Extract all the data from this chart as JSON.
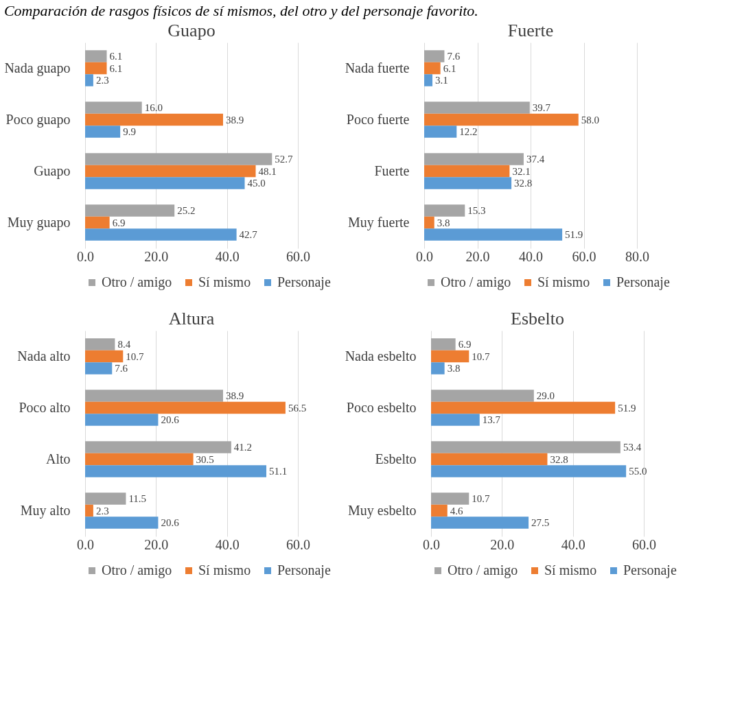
{
  "chart_data": [
    {
      "type": "bar",
      "orientation": "horizontal",
      "title": "Guapo",
      "annotations": [
        "Comparación de rasgos físicos de sí mismos, del otro y del personaje favorito."
      ],
      "categories": [
        "Nada guapo",
        "Poco guapo",
        "Guapo",
        "Muy guapo"
      ],
      "series": [
        {
          "name": "Otro / amigo",
          "color": "#a5a5a5",
          "values": [
            6.1,
            16.0,
            52.7,
            25.2
          ],
          "value_labels": [
            "6.1",
            "16.0",
            "52.7",
            "25.2"
          ]
        },
        {
          "name": "Sí mismo",
          "color": "#ed7d31",
          "values": [
            6.1,
            38.9,
            48.1,
            6.9
          ],
          "value_labels": [
            "6.1",
            "38.9",
            "48.1",
            "6.9"
          ]
        },
        {
          "name": "Personaje",
          "color": "#5b9bd5",
          "values": [
            2.3,
            9.9,
            45.0,
            42.7
          ],
          "value_labels": [
            "2.3",
            "9.9",
            "45.0",
            "42.7"
          ]
        }
      ],
      "xlim": [
        0,
        60
      ],
      "xticks": [
        {
          "value": 0,
          "label": "0.0"
        },
        {
          "value": 20,
          "label": "20.0"
        },
        {
          "value": 40,
          "label": "40.0"
        },
        {
          "value": 60,
          "label": "60.0"
        }
      ],
      "grid": "x",
      "legend": "bottom"
    },
    {
      "type": "bar",
      "orientation": "horizontal",
      "title": "Fuerte",
      "categories": [
        "Nada fuerte",
        "Poco fuerte",
        "Fuerte",
        "Muy fuerte"
      ],
      "series": [
        {
          "name": "Otro / amigo",
          "color": "#a5a5a5",
          "values": [
            7.6,
            39.7,
            37.4,
            15.3
          ],
          "value_labels": [
            "7.6",
            "39.7",
            "37.4",
            "15.3"
          ]
        },
        {
          "name": "Sí mismo",
          "color": "#ed7d31",
          "values": [
            6.1,
            58.0,
            32.1,
            3.8
          ],
          "value_labels": [
            "6.1",
            "58.0",
            "32.1",
            "3.8"
          ]
        },
        {
          "name": "Personaje",
          "color": "#5b9bd5",
          "values": [
            3.1,
            12.2,
            32.8,
            51.9
          ],
          "value_labels": [
            "3.1",
            "12.2",
            "32.8",
            "51.9"
          ]
        }
      ],
      "xlim": [
        0,
        80
      ],
      "xticks": [
        {
          "value": 0,
          "label": "0.0"
        },
        {
          "value": 20,
          "label": "20.0"
        },
        {
          "value": 40,
          "label": "40.0"
        },
        {
          "value": 60,
          "label": "60.0"
        },
        {
          "value": 80,
          "label": "80.0"
        }
      ],
      "grid": "x",
      "legend": "bottom"
    },
    {
      "type": "bar",
      "orientation": "horizontal",
      "title": "Altura",
      "categories": [
        "Nada alto",
        "Poco alto",
        "Alto",
        "Muy alto"
      ],
      "series": [
        {
          "name": "Otro / amigo",
          "color": "#a5a5a5",
          "values": [
            8.4,
            38.9,
            41.2,
            11.5
          ],
          "value_labels": [
            "8.4",
            "38.9",
            "41.2",
            "11.5"
          ]
        },
        {
          "name": "Sí mismo",
          "color": "#ed7d31",
          "values": [
            10.7,
            56.5,
            30.5,
            2.3
          ],
          "value_labels": [
            "10.7",
            "56.5",
            "30.5",
            "2.3"
          ]
        },
        {
          "name": "Personaje",
          "color": "#5b9bd5",
          "values": [
            7.6,
            20.6,
            51.1,
            20.6
          ],
          "value_labels": [
            "7.6",
            "20.6",
            "51.1",
            "20.6"
          ]
        }
      ],
      "xlim": [
        0,
        60
      ],
      "xticks": [
        {
          "value": 0,
          "label": "0.0"
        },
        {
          "value": 20,
          "label": "20.0"
        },
        {
          "value": 40,
          "label": "40.0"
        },
        {
          "value": 60,
          "label": "60.0"
        }
      ],
      "grid": "x",
      "legend": "bottom"
    },
    {
      "type": "bar",
      "orientation": "horizontal",
      "title": "Esbelto",
      "categories": [
        "Nada esbelto",
        "Poco esbelto",
        "Esbelto",
        "Muy esbelto"
      ],
      "series": [
        {
          "name": "Otro / amigo",
          "color": "#a5a5a5",
          "values": [
            6.9,
            29.0,
            53.4,
            10.7
          ],
          "value_labels": [
            "6.9",
            "29.0",
            "53.4",
            "10.7"
          ]
        },
        {
          "name": "Sí mismo",
          "color": "#ed7d31",
          "values": [
            10.7,
            51.9,
            32.8,
            4.6
          ],
          "value_labels": [
            "10.7",
            "51.9",
            "32.8",
            "4.6"
          ]
        },
        {
          "name": "Personaje",
          "color": "#5b9bd5",
          "values": [
            3.8,
            13.7,
            55.0,
            27.5
          ],
          "value_labels": [
            "3.8",
            "13.7",
            "55.0",
            "27.5"
          ]
        }
      ],
      "xlim": [
        0,
        60
      ],
      "xticks": [
        {
          "value": 0,
          "label": "0.0"
        },
        {
          "value": 20,
          "label": "20.0"
        },
        {
          "value": 40,
          "label": "40.0"
        },
        {
          "value": 60,
          "label": "60.0"
        }
      ],
      "grid": "x",
      "legend": "bottom"
    }
  ]
}
